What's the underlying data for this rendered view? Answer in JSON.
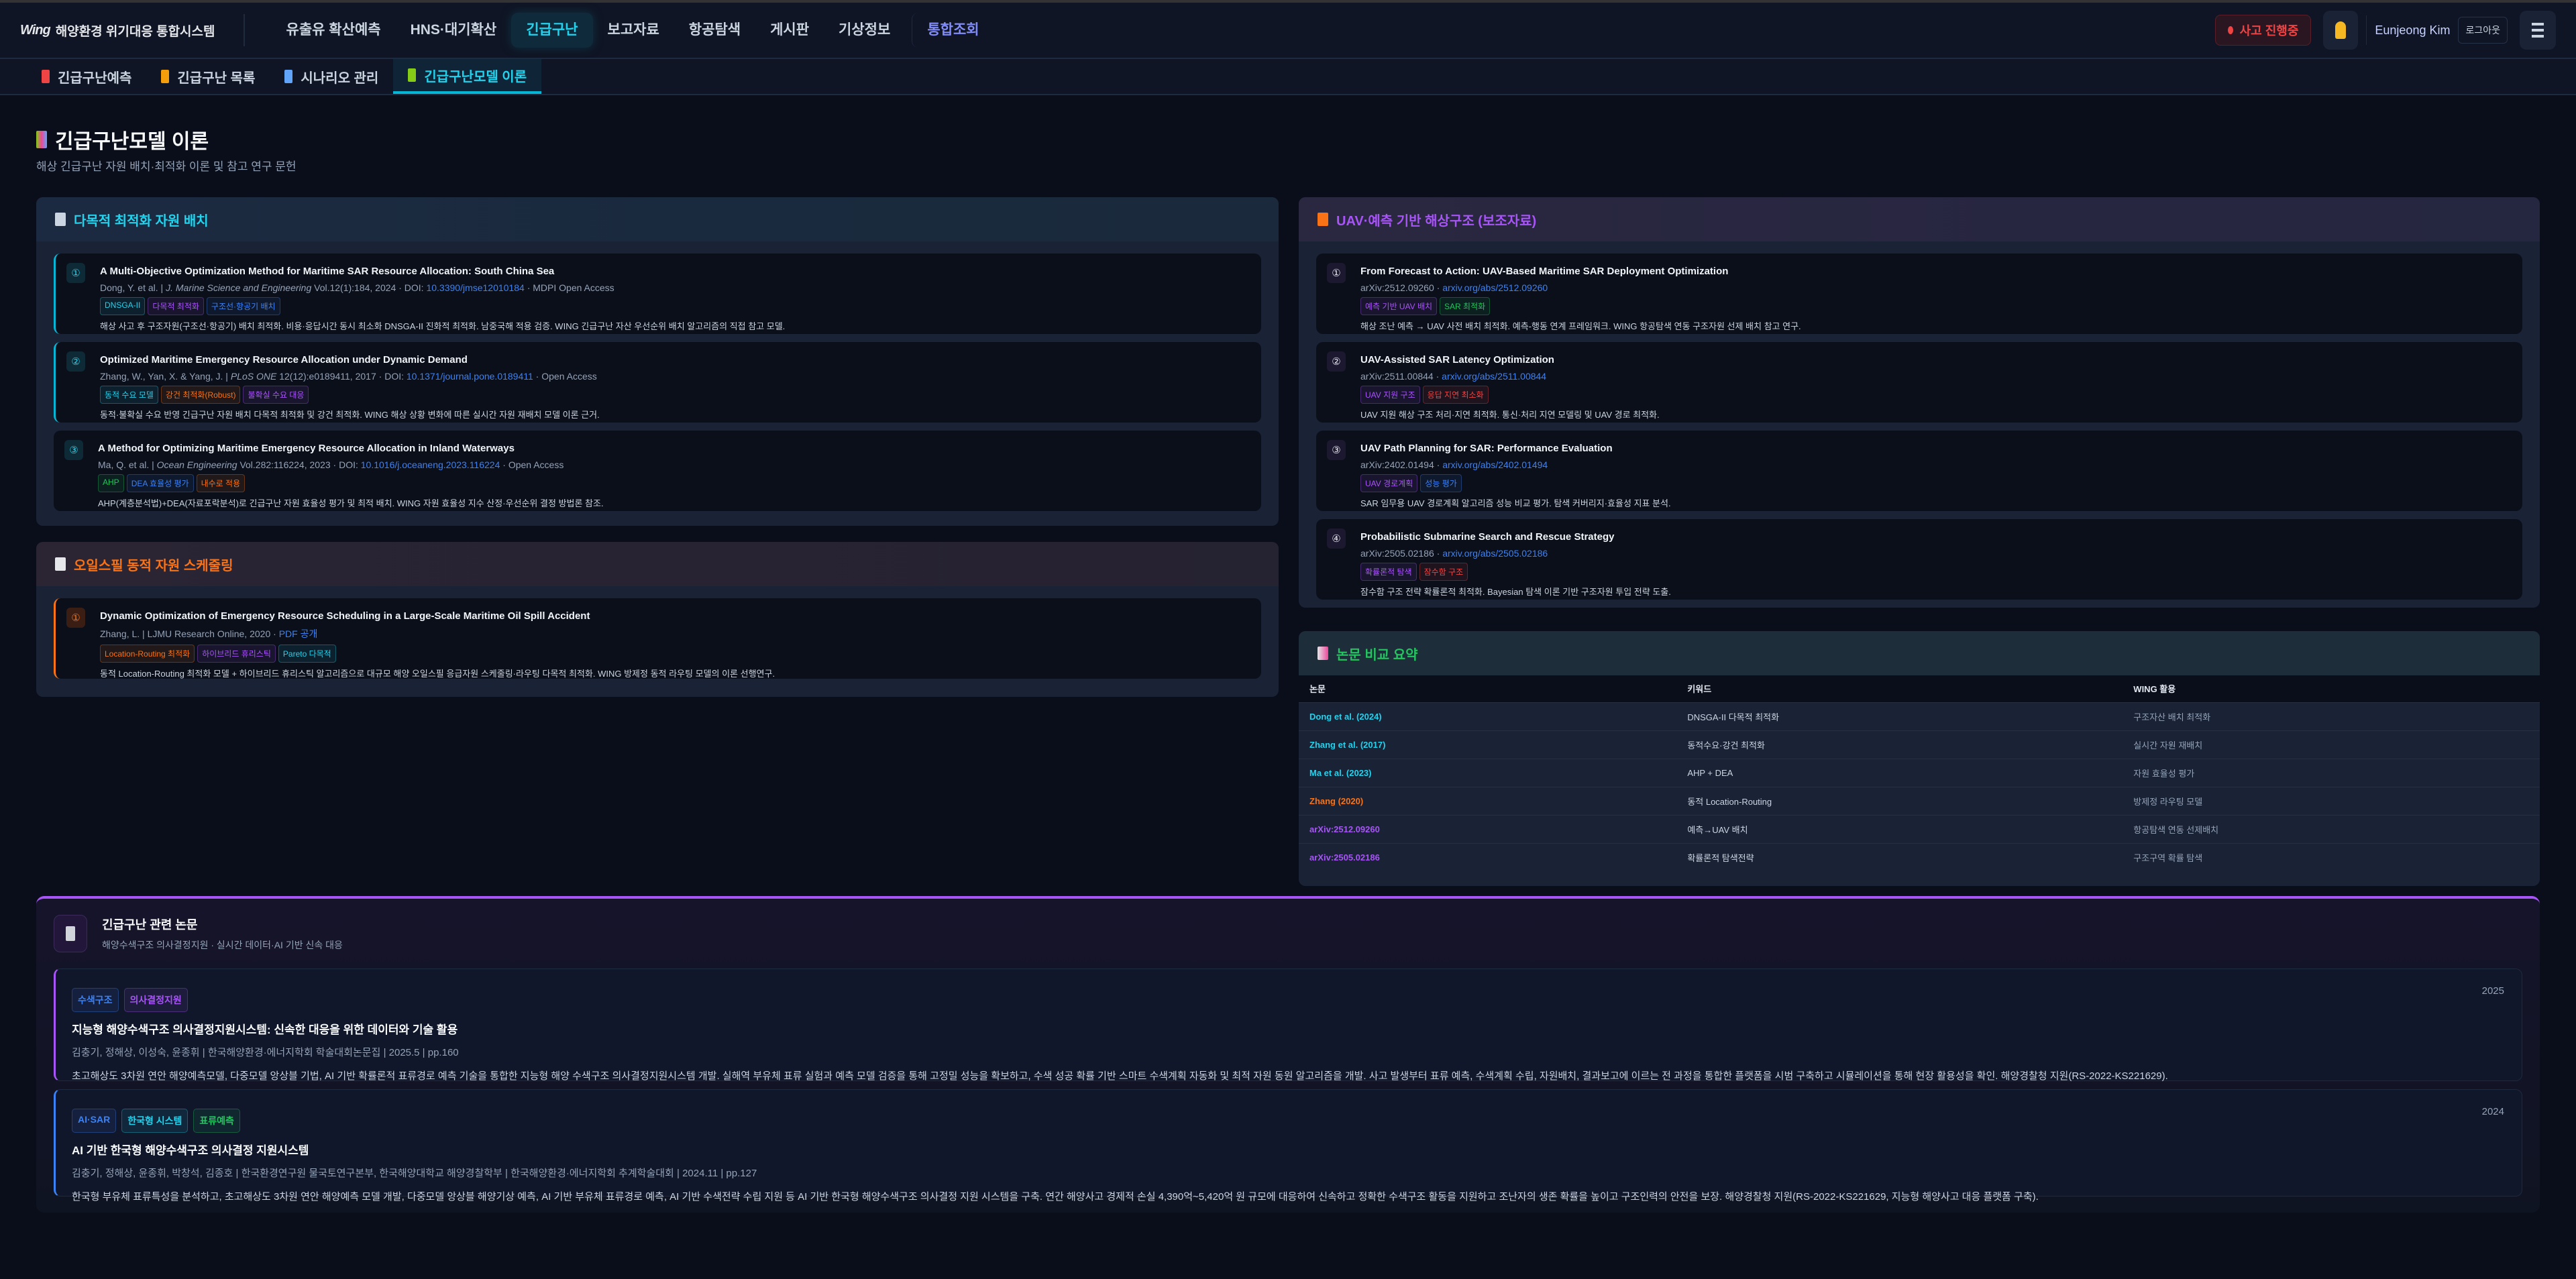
{
  "header": {
    "logo_mark": "Wing",
    "app_title": "해양환경 위기대응 통합시스템",
    "nav": [
      "유출유 확산예측",
      "HNS·대기확산",
      "긴급구난",
      "보고자료",
      "항공탐색",
      "게시판",
      "기상정보",
      "통합조회"
    ],
    "active_nav": "긴급구난",
    "incident_badge": "사고 진행중",
    "user_name": "Eunjeong Kim",
    "logout": "로그아웃"
  },
  "subtabs": [
    {
      "label": "긴급구난예측",
      "icon": "siren-icon"
    },
    {
      "label": "긴급구난 목록",
      "icon": "clipboard-icon"
    },
    {
      "label": "시나리오 관리",
      "icon": "chart-icon"
    },
    {
      "label": "긴급구난모델 이론",
      "icon": "books-icon",
      "active": true
    }
  ],
  "page": {
    "title": "긴급구난모델 이론",
    "subtitle": "해상 긴급구난 자원 배치·최적화 이론 및 참고 연구 문헌"
  },
  "colors": {
    "cyan": "#22d3ee",
    "purple": "#a855f7",
    "blue": "#3b82f6",
    "orange": "#f97316",
    "green": "#22c55e",
    "red": "#ef4444"
  },
  "sections": {
    "multi": {
      "title": "다목적 최적화 자원 배치",
      "icon": "gear-icon",
      "papers": [
        {
          "num": "①",
          "title": "A Multi-Objective Optimization Method for Maritime SAR Resource Allocation: South China Sea",
          "authors": "Dong, Y. et al.",
          "journal": "J. Marine Science and Engineering",
          "volume": "Vol.12(1):184, 2024",
          "doi_label": "DOI:",
          "doi": "10.3390/jmse12010184",
          "access": "MDPI Open Access",
          "tags": [
            {
              "t": "DNSGA-II",
              "c": "cyan"
            },
            {
              "t": "다목적 최적화",
              "c": "purple"
            },
            {
              "t": "구조선·항공기 배치",
              "c": "blue"
            }
          ],
          "desc": "해상 사고 후 구조자원(구조선·항공기) 배치 최적화. 비용·응답시간 동시 최소화 DNSGA-II 진화적 최적화. 남중국해 적용 검증. WING 긴급구난 자산 우선순위 배치 알고리즘의 직접 참고 모델."
        },
        {
          "num": "②",
          "title": "Optimized Maritime Emergency Resource Allocation under Dynamic Demand",
          "authors": "Zhang, W., Yan, X. & Yang, J.",
          "journal": "PLoS ONE",
          "volume": "12(12):e0189411, 2017",
          "doi_label": "DOI:",
          "doi": "10.1371/journal.pone.0189411",
          "access": "Open Access",
          "tags": [
            {
              "t": "동적 수요 모델",
              "c": "cyan"
            },
            {
              "t": "강건 최적화(Robust)",
              "c": "orange"
            },
            {
              "t": "불확실 수요 대응",
              "c": "purple"
            }
          ],
          "desc": "동적·불확실 수요 반영 긴급구난 자원 배치 다목적 최적화 및 강건 최적화. WING 해상 상황 변화에 따른 실시간 자원 재배치 모델 이론 근거."
        },
        {
          "num": "③",
          "title": "A Method for Optimizing Maritime Emergency Resource Allocation in Inland Waterways",
          "authors": "Ma, Q. et al.",
          "journal": "Ocean Engineering",
          "volume": "Vol.282:116224, 2023",
          "doi_label": "DOI:",
          "doi": "10.1016/j.oceaneng.2023.116224",
          "access": "Open Access",
          "tags": [
            {
              "t": "AHP",
              "c": "green"
            },
            {
              "t": "DEA 효율성 평가",
              "c": "blue"
            },
            {
              "t": "내수로 적용",
              "c": "orange"
            }
          ],
          "desc": "AHP(계층분석법)+DEA(자료포락분석)로 긴급구난 자원 효율성 평가 및 최적 배치. WING 자원 효율성 지수 산정·우선순위 결정 방법론 참조."
        }
      ]
    },
    "oil": {
      "title": "오일스필 동적 자원 스케줄링",
      "icon": "oil-drum-icon",
      "papers": [
        {
          "num": "①",
          "title": "Dynamic Optimization of Emergency Resource Scheduling in a Large-Scale Maritime Oil Spill Accident",
          "authors": "Zhang, L.",
          "journal": "",
          "volume": "LJMU Research Online, 2020",
          "doi_label": "",
          "doi": "PDF 공개",
          "access": "",
          "tags": [
            {
              "t": "Location-Routing 최적화",
              "c": "orange"
            },
            {
              "t": "하이브리드 휴리스틱",
              "c": "purple"
            },
            {
              "t": "Pareto 다목적",
              "c": "cyan"
            }
          ],
          "desc": "동적 Location-Routing 최적화 모델 + 하이브리드 휴리스틱 알고리즘으로 대규모 해양 오일스필 응급자원 스케줄링·라우팅 다목적 최적화. WING 방제정 동적 라우팅 모델의 이론 선행연구."
        }
      ]
    },
    "uav": {
      "title": "UAV·예측 기반 해상구조 (보조자료)",
      "icon": "helicopter-icon",
      "papers": [
        {
          "num": "①",
          "title": "From Forecast to Action: UAV-Based Maritime SAR Deployment Optimization",
          "id": "arXiv:2512.09260",
          "link": "arxiv.org/abs/2512.09260",
          "tags": [
            {
              "t": "예측 기반 UAV 배치",
              "c": "purple"
            },
            {
              "t": "SAR 최적화",
              "c": "green"
            }
          ],
          "desc": "해상 조난 예측 → UAV 사전 배치 최적화. 예측-행동 연계 프레임워크. WING 항공탐색 연동 구조자원 선제 배치 참고 연구."
        },
        {
          "num": "②",
          "title": "UAV-Assisted SAR Latency Optimization",
          "id": "arXiv:2511.00844",
          "link": "arxiv.org/abs/2511.00844",
          "tags": [
            {
              "t": "UAV 지원 구조",
              "c": "purple"
            },
            {
              "t": "응답 지연 최소화",
              "c": "red"
            }
          ],
          "desc": "UAV 지원 해상 구조 처리·지연 최적화. 통신·처리 지연 모델링 및 UAV 경로 최적화."
        },
        {
          "num": "③",
          "title": "UAV Path Planning for SAR: Performance Evaluation",
          "id": "arXiv:2402.01494",
          "link": "arxiv.org/abs/2402.01494",
          "tags": [
            {
              "t": "UAV 경로계획",
              "c": "purple"
            },
            {
              "t": "성능 평가",
              "c": "blue"
            }
          ],
          "desc": "SAR 임무용 UAV 경로계획 알고리즘 성능 비교 평가. 탐색 커버리지·효율성 지표 분석."
        },
        {
          "num": "④",
          "title": "Probabilistic Submarine Search and Rescue Strategy",
          "id": "arXiv:2505.02186",
          "link": "arxiv.org/abs/2505.02186",
          "tags": [
            {
              "t": "확률론적 탐색",
              "c": "purple"
            },
            {
              "t": "잠수함 구조",
              "c": "red"
            }
          ],
          "desc": "잠수함 구조 전략 확률론적 최적화. Bayesian 탐색 이론 기반 구조자원 투입 전략 도출."
        }
      ]
    },
    "compare": {
      "title": "논문 비교 요약",
      "icon": "bar-chart-icon",
      "columns": [
        "논문",
        "키워드",
        "WING 활용"
      ],
      "rows": [
        {
          "paper": "Dong et al. (2024)",
          "c": "cyan",
          "kw": "DNSGA-II 다목적 최적화",
          "use": "구조자산 배치 최적화"
        },
        {
          "paper": "Zhang et al. (2017)",
          "c": "cyan",
          "kw": "동적수요·강건 최적화",
          "use": "실시간 자원 재배치"
        },
        {
          "paper": "Ma et al. (2023)",
          "c": "cyan",
          "kw": "AHP + DEA",
          "use": "자원 효율성 평가"
        },
        {
          "paper": "Zhang (2020)",
          "c": "orange",
          "kw": "동적 Location-Routing",
          "use": "방제정 라우팅 모델"
        },
        {
          "paper": "arXiv:2512.09260",
          "c": "purple",
          "kw": "예측→UAV 배치",
          "use": "항공탐색 연동 선제배치"
        },
        {
          "paper": "arXiv:2505.02186",
          "c": "purple",
          "kw": "확률론적 탐색전략",
          "use": "구조구역 확률 탐색"
        }
      ]
    }
  },
  "related": {
    "title": "긴급구난 관련 논문",
    "subtitle": "해양수색구조 의사결정지원 · 실시간 데이터·AI 기반 신속 대응",
    "papers": [
      {
        "tags": [
          {
            "t": "수색구조",
            "c": "blue"
          },
          {
            "t": "의사결정지원",
            "c": "purple"
          }
        ],
        "year": "2025",
        "title": "지능형 해양수색구조 의사결정지원시스템: 신속한 대응을 위한 데이터와 기술 활용",
        "meta": "김충기, 정해상, 이성숙, 윤종휘 | 한국해양환경·에너지학회 학술대회논문집 | 2025.5 | pp.160",
        "desc": "초고해상도 3차원 연안 해양예측모델, 다중모델 앙상블 기법, AI 기반 확률론적 표류경로 예측 기술을 통합한 지능형 해양 수색구조 의사결정지원시스템 개발. 실해역 부유체 표류 실험과 예측 모델 검증을 통해 고정밀 성능을 확보하고, 수색 성공 확률 기반 스마트 수색계획 자동화 및 최적 자원 동원 알고리즘을 개발. 사고 발생부터 표류 예측, 수색계획 수립, 자원배치, 결과보고에 이르는 전 과정을 통합한 플랫폼을 시범 구축하고 시뮬레이션을 통해 현장 활용성을 확인. 해양경찰청 지원(RS-2022-KS221629)."
      },
      {
        "tags": [
          {
            "t": "AI·SAR",
            "c": "blue"
          },
          {
            "t": "한국형 시스템",
            "c": "cyan"
          },
          {
            "t": "표류예측",
            "c": "green"
          }
        ],
        "year": "2024",
        "title": "AI 기반 한국형 해양수색구조 의사결정 지원시스템",
        "meta": "김충기, 정해상, 윤종휘, 박창석, 김종호 | 한국환경연구원 물국토연구본부, 한국해양대학교 해양경찰학부 | 한국해양환경·에너지학회 추계학술대회 | 2024.11 | pp.127",
        "desc": "한국형 부유체 표류특성을 분석하고, 초고해상도 3차원 연안 해양예측 모델 개발, 다중모델 앙상블 해양기상 예측, AI 기반 부유체 표류경로 예측, AI 기반 수색전략 수립 지원 등 AI 기반 한국형 해양수색구조 의사결정 지원 시스템을 구축. 연간 해양사고 경제적 손실 4,390억~5,420억 원 규모에 대응하여 신속하고 정확한 수색구조 활동을 지원하고 조난자의 생존 확률을 높이고 구조인력의 안전을 보장. 해양경찰청 지원(RS-2022-KS221629, 지능형 해양사고 대응 플랫폼 구축)."
      }
    ]
  }
}
